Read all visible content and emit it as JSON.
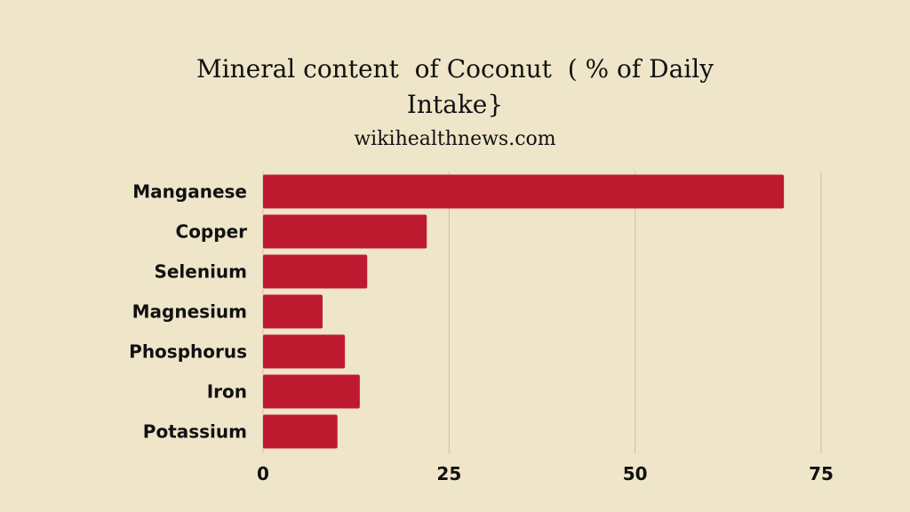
{
  "chart_data": {
    "type": "bar",
    "orientation": "horizontal",
    "title_lines": [
      "Mineral content  of Coconut  ( % of Daily",
      "Intake}"
    ],
    "subtitle": "wikihealthnews.com",
    "xlabel": "",
    "ylabel": "",
    "categories": [
      "Manganese",
      "Copper",
      "Selenium",
      "Magnesium",
      "Phosphorus",
      "Iron",
      "Potassium"
    ],
    "values": [
      70,
      22,
      14,
      8,
      11,
      13,
      10
    ],
    "xlim": [
      0,
      75
    ],
    "xticks": [
      0,
      25,
      50,
      75
    ],
    "grid": "vertical",
    "colors": {
      "bar": "#bd1a30",
      "grid": "#c9c0a8",
      "background": "#efe5c9",
      "text": "#111111"
    }
  }
}
